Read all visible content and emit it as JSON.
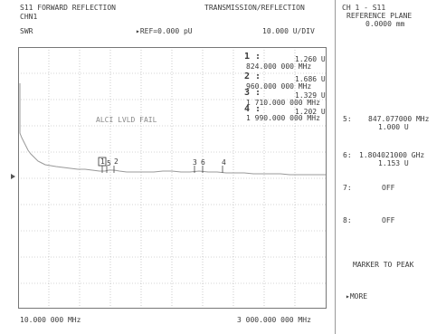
{
  "header": {
    "title_left": "S11 FORWARD REFLECTION",
    "title_right": "TRANSMISSION/REFLECTION",
    "channel": "CHN1",
    "format": "SWR",
    "reference": "▸REF=0.000 pU",
    "scale": "10.000 U/DIV"
  },
  "markers": [
    {
      "num": "1 :",
      "value": "1.260 U",
      "freq": "824.000 000 MHz"
    },
    {
      "num": "2 :",
      "value": "1.686 U",
      "freq": "960.000 000 MHz"
    },
    {
      "num": "3 :",
      "value": "1.329 U",
      "freq": "1 710.000 000 MHz"
    },
    {
      "num": "4 :",
      "value": "1.202 U",
      "freq": "1 990.000 000 MHz"
    }
  ],
  "plot": {
    "status_message": "ALCI LVLD FAIL",
    "start_freq": "10.000 000 MHz",
    "stop_freq": "3 000.000 000 MHz",
    "trace_markers": [
      "1",
      "5",
      "2",
      "3",
      "6",
      "4"
    ]
  },
  "softkeys": {
    "channel_line": "CH 1 - S11",
    "ref_plane_label": "REFERENCE PLANE",
    "ref_plane_value": "0.0000 mm",
    "m5_label": "5:",
    "m5_freq": "847.077000 MHz",
    "m5_value": "1.000 U",
    "m6_label": "6:",
    "m6_freq": "1.804021000 GHz",
    "m6_value": "1.153 U",
    "m7_label": "7:",
    "m7_value": "OFF",
    "m8_label": "8:",
    "m8_value": "OFF",
    "marker_to_peak": "MARKER TO PEAK",
    "more": "▸MORE"
  }
}
